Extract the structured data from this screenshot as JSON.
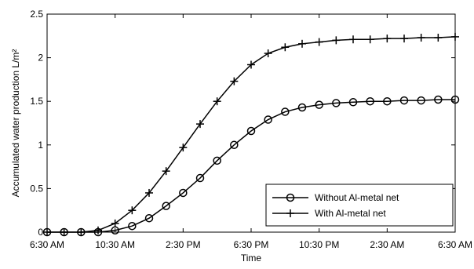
{
  "chart_data": {
    "type": "line",
    "title": "",
    "xlabel": "Time",
    "ylabel": "Accumulated  water production L/m²",
    "ylim": [
      0,
      2.5
    ],
    "yticks": [
      "0",
      "0.5",
      "1",
      "1.5",
      "2",
      "2.5"
    ],
    "yticks_values": [
      0,
      0.5,
      1,
      1.5,
      2,
      2.5
    ],
    "xlim_hours": [
      0,
      24
    ],
    "xticks": [
      "6:30 AM",
      "10:30 AM",
      "2:30 PM",
      "6:30 PM",
      "10:30 PM",
      "2:30 AM",
      "6:30 AM"
    ],
    "grid": false,
    "legend_position": "lower-right",
    "series": [
      {
        "name": "Without Al-metal net",
        "marker": "circle",
        "x": [
          "6:30 AM",
          "7:30 AM",
          "8:30 AM",
          "9:30 AM",
          "10:30 AM",
          "11:30 AM",
          "12:30 PM",
          "1:30 PM",
          "2:30 PM",
          "3:30 PM",
          "4:30 PM",
          "5:30 PM",
          "6:30 PM",
          "7:30 PM",
          "8:30 PM",
          "9:30 PM",
          "10:30 PM",
          "11:30 PM",
          "12:30 AM",
          "1:30 AM",
          "2:30 AM",
          "3:30 AM",
          "4:30 AM",
          "5:30 AM",
          "6:30 AM"
        ],
        "values": [
          0,
          0,
          0,
          0,
          0.02,
          0.07,
          0.16,
          0.3,
          0.45,
          0.62,
          0.82,
          1.0,
          1.16,
          1.29,
          1.38,
          1.43,
          1.46,
          1.48,
          1.49,
          1.5,
          1.5,
          1.51,
          1.51,
          1.52,
          1.52
        ]
      },
      {
        "name": "With Al-metal net",
        "marker": "plus",
        "x": [
          "6:30 AM",
          "7:30 AM",
          "8:30 AM",
          "9:30 AM",
          "10:30 AM",
          "11:30 AM",
          "12:30 PM",
          "1:30 PM",
          "2:30 PM",
          "3:30 PM",
          "4:30 PM",
          "5:30 PM",
          "6:30 PM",
          "7:30 PM",
          "8:30 PM",
          "9:30 PM",
          "10:30 PM",
          "11:30 PM",
          "12:30 AM",
          "1:30 AM",
          "2:30 AM",
          "3:30 AM",
          "4:30 AM",
          "5:30 AM",
          "6:30 AM"
        ],
        "values": [
          0,
          0,
          0,
          0.02,
          0.1,
          0.25,
          0.45,
          0.7,
          0.97,
          1.24,
          1.5,
          1.73,
          1.92,
          2.05,
          2.12,
          2.16,
          2.18,
          2.2,
          2.21,
          2.21,
          2.22,
          2.22,
          2.23,
          2.23,
          2.24
        ]
      }
    ]
  }
}
